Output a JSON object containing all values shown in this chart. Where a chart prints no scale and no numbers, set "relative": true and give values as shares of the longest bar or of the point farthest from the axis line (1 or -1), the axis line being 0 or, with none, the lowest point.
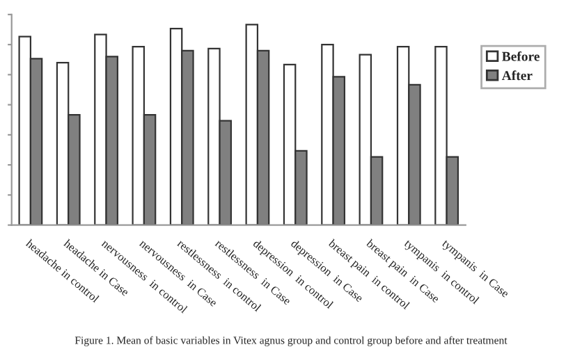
{
  "chart_data": {
    "type": "bar",
    "relative": true,
    "categories": [
      "headache in control",
      "headache in Case",
      "nervousness  in control",
      "nervousness  in Case",
      "restlessness  in control",
      "restlessness  in Case",
      "depression  in control",
      "depression  in Case",
      "breast pain  in control",
      "breast pain  in Case",
      "tympanis  in control",
      "tympanis  in Case"
    ],
    "series": [
      {
        "name": "Before",
        "color": "#ffffff",
        "values": [
          0.94,
          0.81,
          0.95,
          0.89,
          0.98,
          0.88,
          1.0,
          0.8,
          0.9,
          0.85,
          0.89,
          0.89
        ]
      },
      {
        "name": "After",
        "color": "#808080",
        "values": [
          0.83,
          0.55,
          0.84,
          0.55,
          0.87,
          0.52,
          0.87,
          0.37,
          0.74,
          0.34,
          0.7,
          0.34
        ]
      }
    ],
    "legend": "right",
    "grid": false,
    "annotations": [
      "Figure 1. Mean of basic variables in Vitex agnus group and control group before and after treatment"
    ]
  }
}
